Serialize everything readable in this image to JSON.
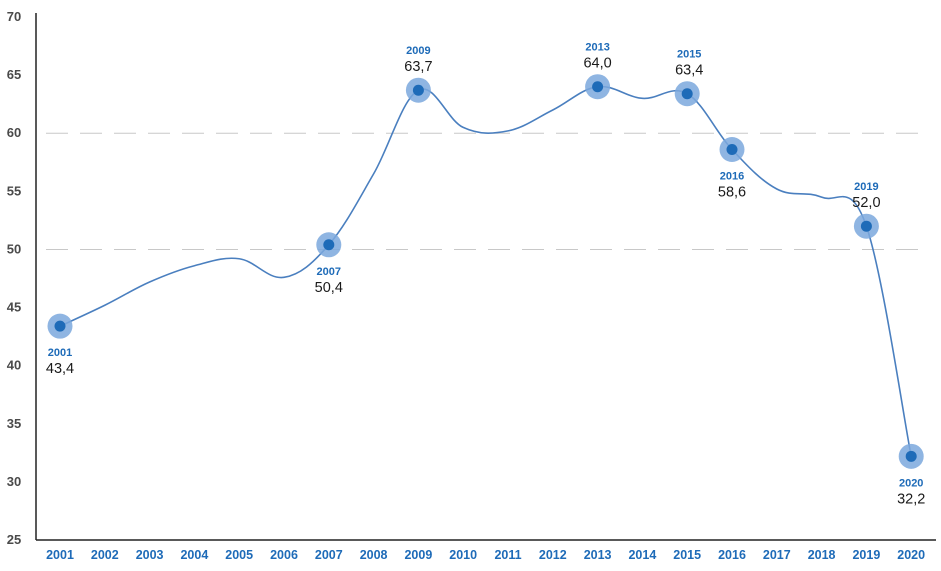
{
  "chart_data": {
    "type": "line",
    "title": "",
    "xlabel": "",
    "ylabel": "",
    "ylim": [
      25,
      70
    ],
    "y_ticks": [
      25,
      30,
      35,
      40,
      45,
      50,
      55,
      60,
      65,
      70
    ],
    "x": [
      "2001",
      "2002",
      "2003",
      "2004",
      "2005",
      "2006",
      "2007",
      "2008",
      "2009",
      "2010",
      "2011",
      "2012",
      "2013",
      "2014",
      "2015",
      "2016",
      "2017",
      "2018",
      "2019",
      "2020"
    ],
    "series": [
      {
        "values": [
          43.4,
          45.2,
          47.2,
          48.6,
          49.2,
          47.6,
          50.4,
          56.5,
          63.7,
          60.5,
          60.2,
          62.0,
          64.0,
          63.0,
          63.4,
          58.6,
          55.2,
          54.5,
          52.0,
          32.2
        ]
      }
    ],
    "gridlines": [
      50,
      60
    ],
    "grid": "dashed horizontal at 50 and 60",
    "highlighted_points": [
      {
        "year": "2001",
        "label": "43,4"
      },
      {
        "year": "2007",
        "label": "50,4"
      },
      {
        "year": "2009",
        "label": "63,7"
      },
      {
        "year": "2013",
        "label": "64,0"
      },
      {
        "year": "2015",
        "label": "63,4"
      },
      {
        "year": "2016",
        "label": "58,6"
      },
      {
        "year": "2019",
        "label": "52,0"
      },
      {
        "year": "2020",
        "label": "32,2"
      }
    ],
    "colors": {
      "line": "#4a7fbf",
      "marker_inner": "#1e6bb8",
      "marker_halo": "#7ba8dd",
      "year_label": "#1e6bb8",
      "axis": "#222222",
      "grid": "#c8c8c8"
    }
  }
}
